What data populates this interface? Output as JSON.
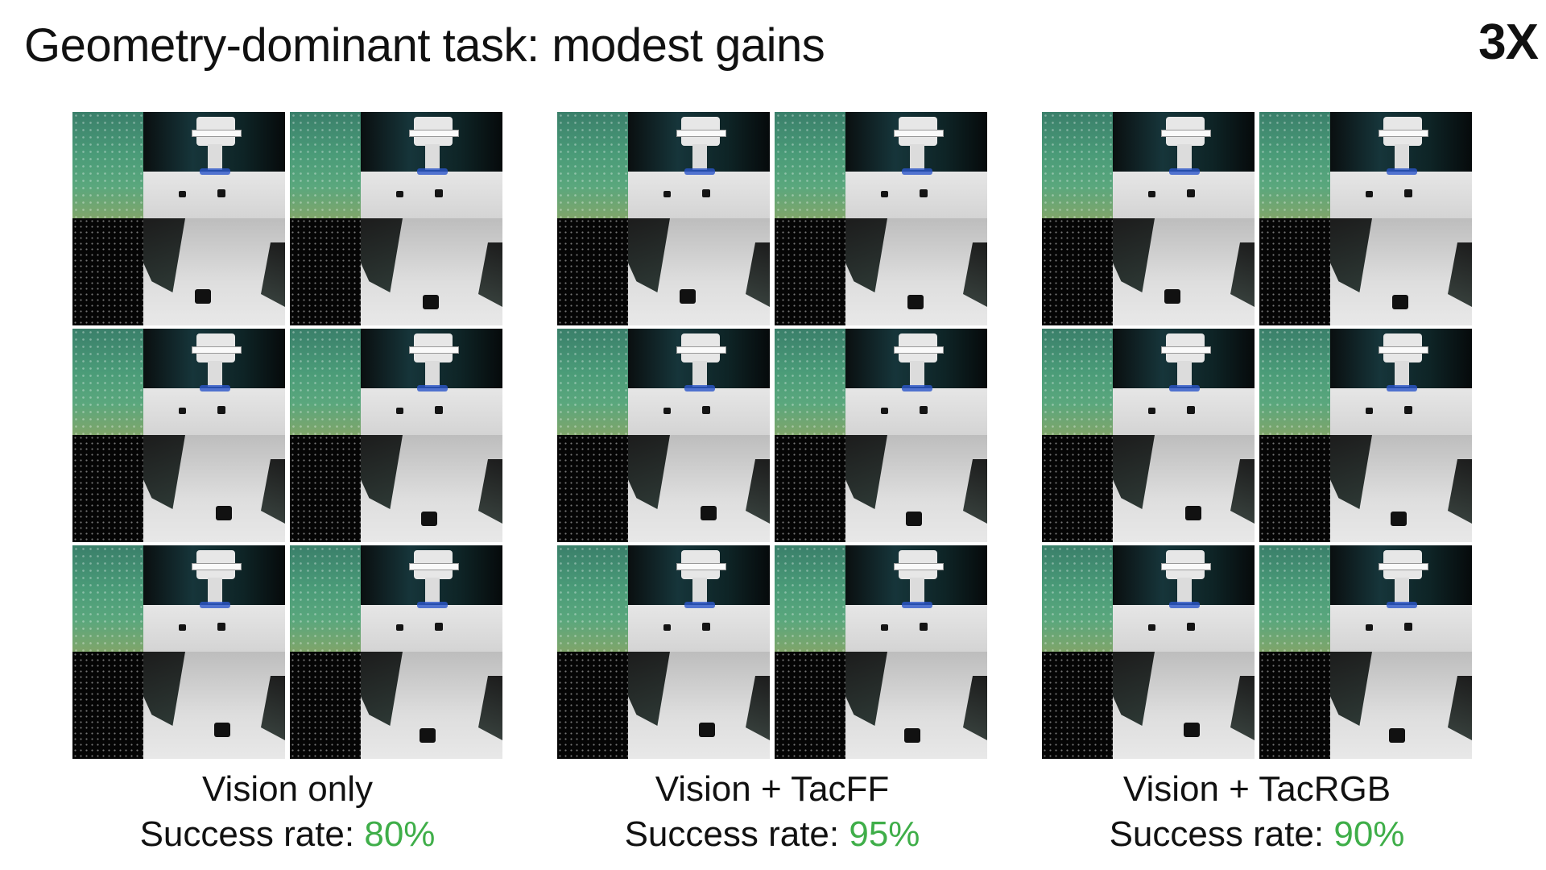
{
  "slide": {
    "title": "Geometry-dominant task: modest gains",
    "speed_badge": "3X"
  },
  "methods": [
    {
      "label": "Vision only",
      "rate_prefix": "Success rate: ",
      "rate_value": "80%"
    },
    {
      "label": "Vision + TacFF",
      "rate_prefix": "Success rate: ",
      "rate_value": "95%"
    },
    {
      "label": "Vision + TacRGB",
      "rate_prefix": "Success rate: ",
      "rate_value": "90%"
    }
  ],
  "colors": {
    "success_rate_value": "#3fae49",
    "background": "#ffffff"
  },
  "episodes_per_method": 6
}
